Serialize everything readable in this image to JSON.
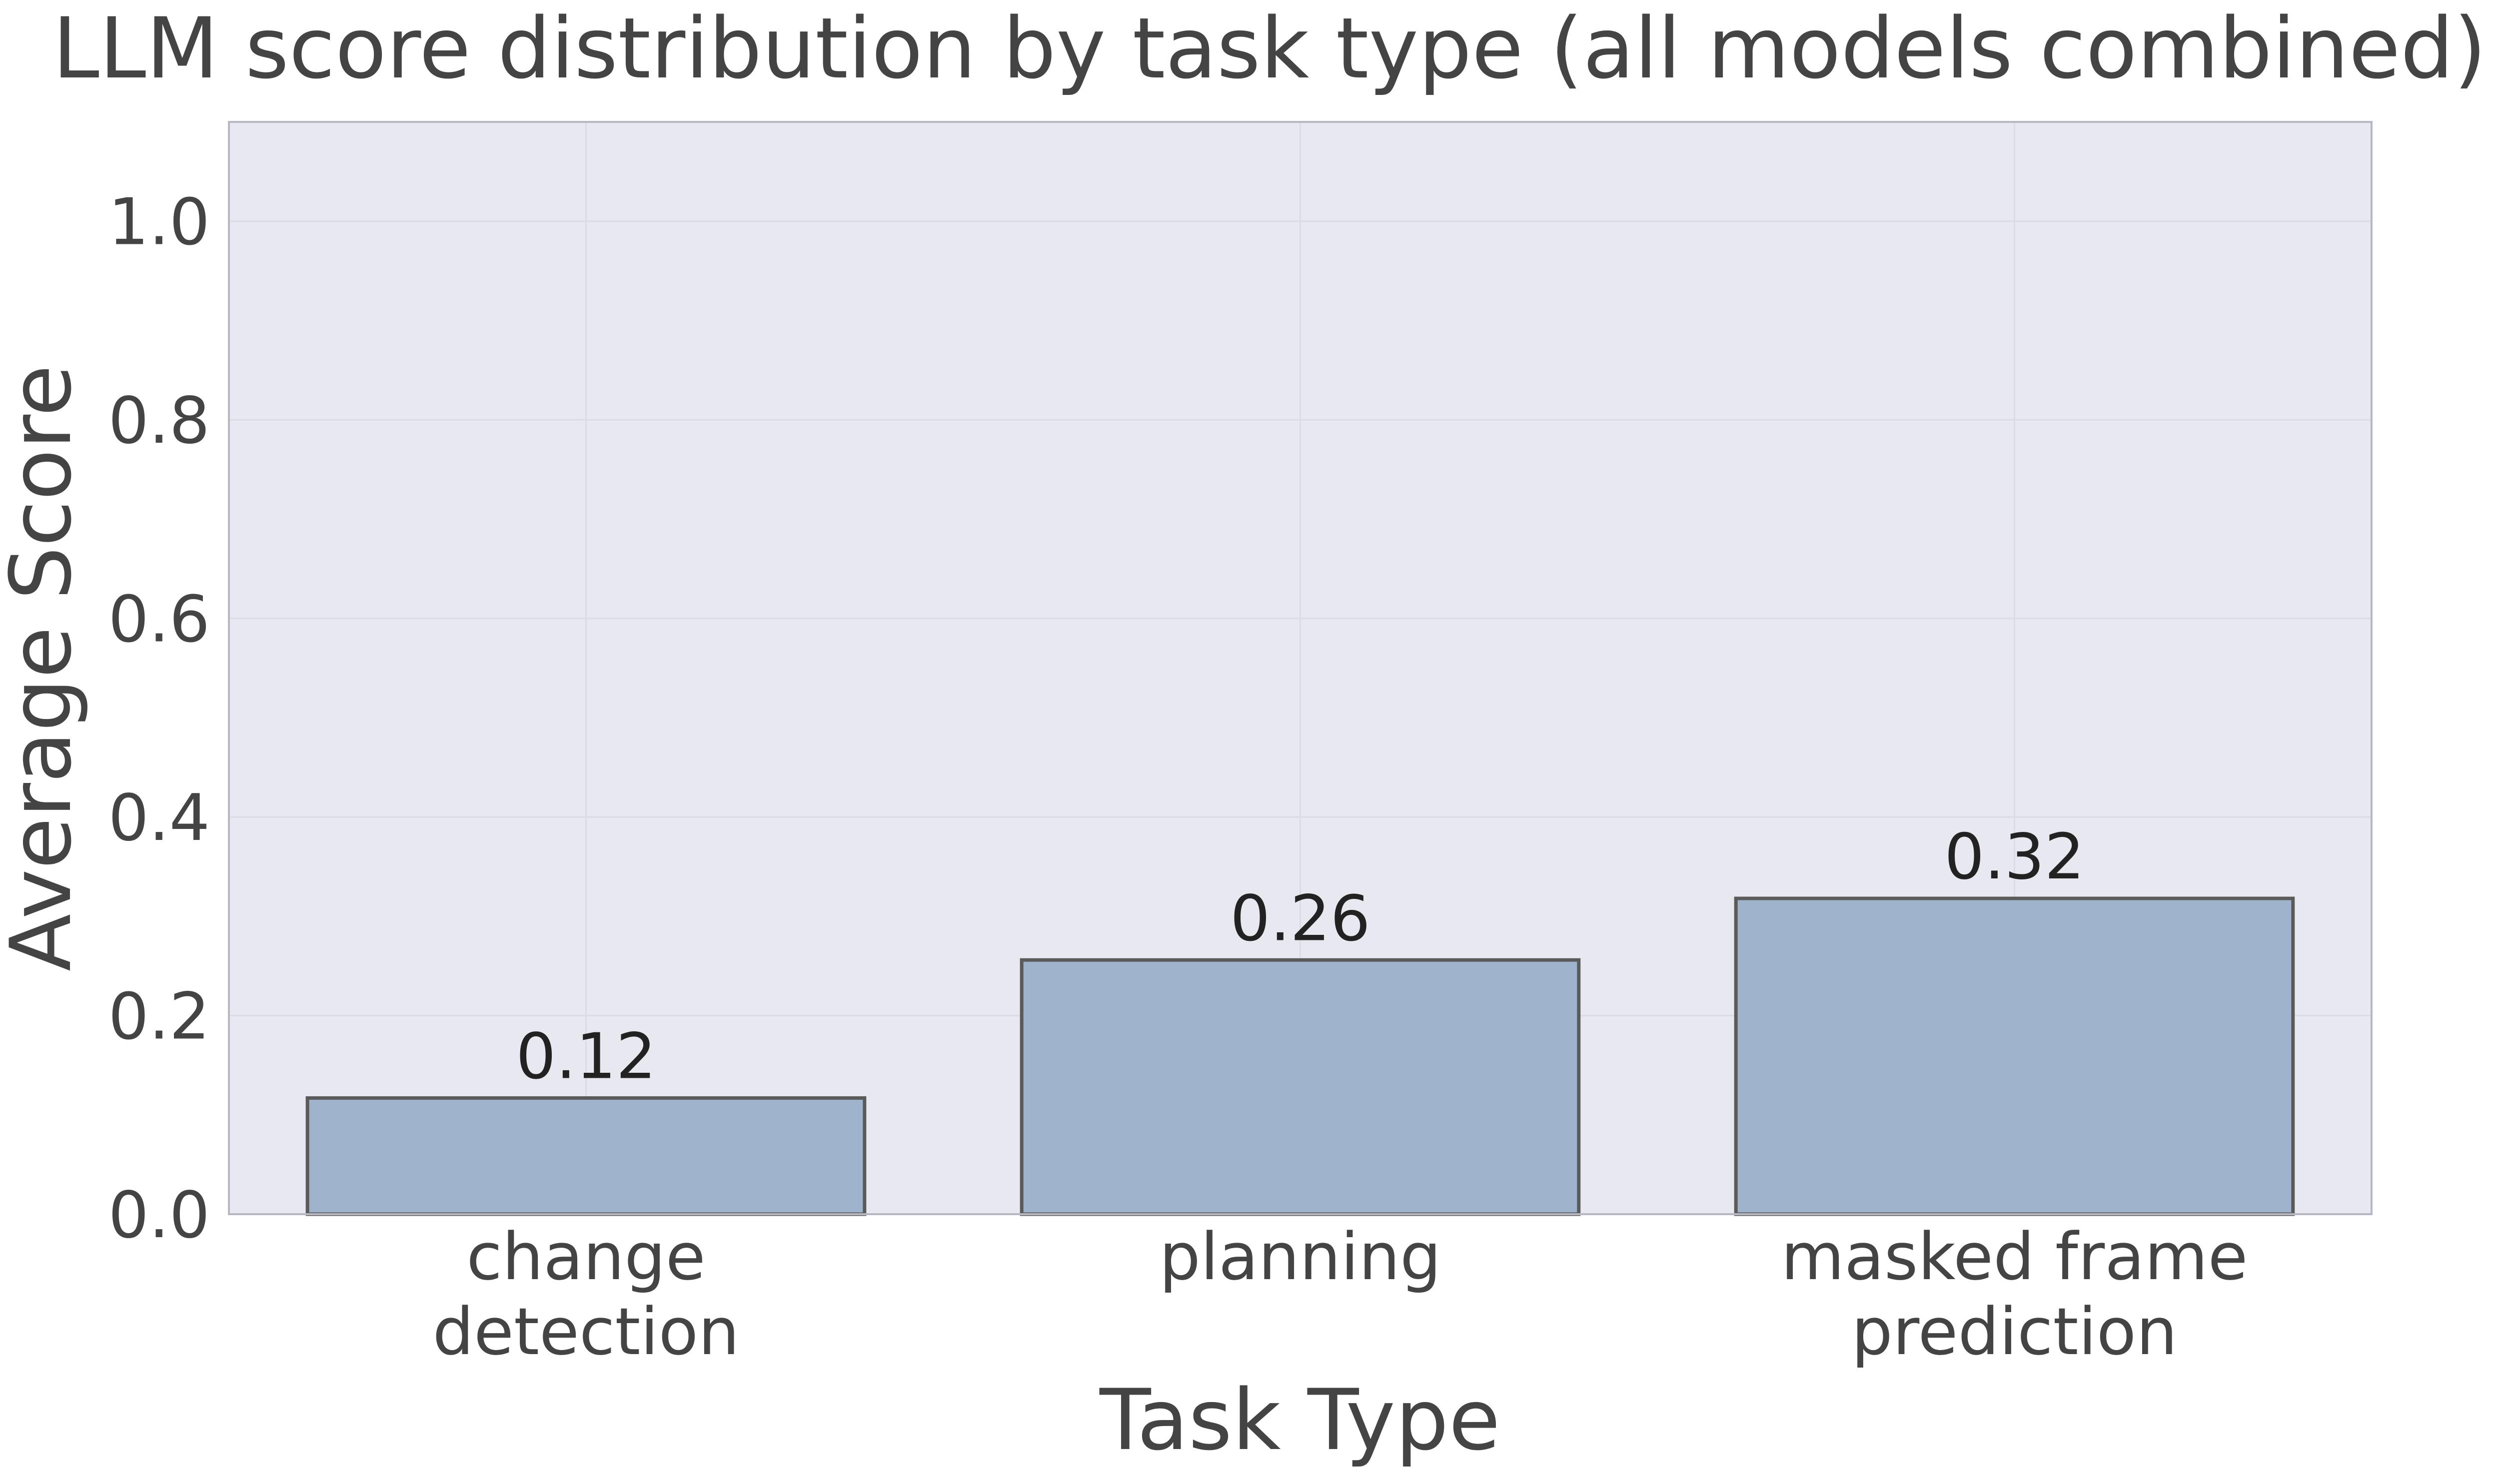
{
  "chart_data": {
    "type": "bar",
    "title": "LLM score distribution by task type (all models combined)",
    "xlabel": "Task Type",
    "ylabel": "Average Score",
    "categories": [
      [
        "change",
        "detection"
      ],
      [
        "planning"
      ],
      [
        "masked frame",
        "prediction"
      ]
    ],
    "values": [
      0.117,
      0.256,
      0.318
    ],
    "value_labels": [
      "0.12",
      "0.26",
      "0.32"
    ],
    "ylim": [
      0,
      1.1
    ],
    "yticks": [
      0.0,
      0.2,
      0.4,
      0.6,
      0.8,
      1.0
    ],
    "ytick_labels": [
      "0.0",
      "0.2",
      "0.4",
      "0.6",
      "0.8",
      "1.0"
    ],
    "grid": true,
    "colors": {
      "bar_fill": "#a0b3cd",
      "bar_edge": "#5a5a5a",
      "plot_background": "#e8e8f1",
      "grid": "#dcdce6",
      "frame": "#b8b8c4",
      "text": "#444444"
    }
  }
}
